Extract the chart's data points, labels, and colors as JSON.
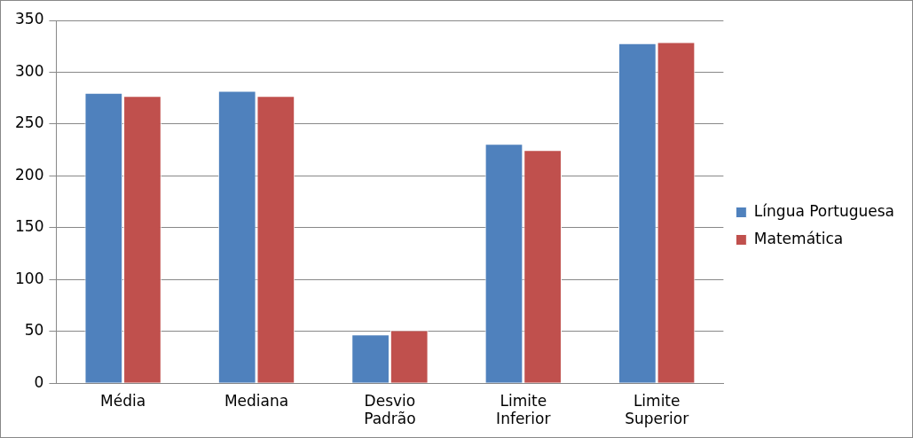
{
  "chart_data": {
    "type": "bar",
    "categories": [
      "Média",
      "Mediana",
      "Desvio Padrão",
      "Limite Inferior",
      "Limite Superior"
    ],
    "series": [
      {
        "name": "Língua Portuguesa",
        "color": "#4f81bd",
        "values": [
          280,
          282,
          47,
          231,
          328
        ]
      },
      {
        "name": "Matemática",
        "color": "#c0504d",
        "values": [
          277,
          277,
          51,
          225,
          329
        ]
      }
    ],
    "ylim": [
      0,
      350
    ],
    "yticks": [
      0,
      50,
      100,
      150,
      200,
      250,
      300,
      350
    ],
    "grid": "y",
    "legend": "right"
  }
}
